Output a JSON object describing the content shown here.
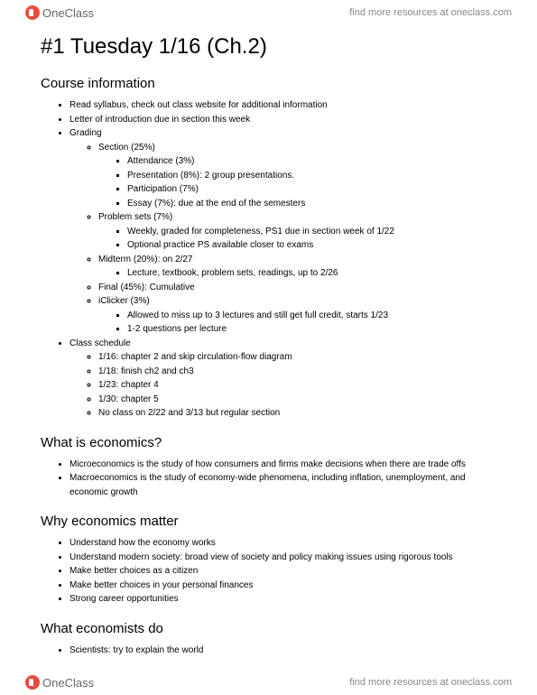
{
  "brand": {
    "name": "OneClass",
    "resources_text": "find more resources at oneclass.com"
  },
  "page_title": "#1 Tuesday 1/16 (Ch.2)",
  "sections": {
    "course_info": {
      "heading": "Course information",
      "bullets": {
        "b1": "Read syllabus, check out class website for additional information",
        "b2": "Letter of introduction due in section this week",
        "b3": "Grading",
        "b3_section": "Section (25%)",
        "b3_attendance": "Attendance (3%)",
        "b3_presentation": "Presentation (8%): 2 group presentations.",
        "b3_participation": "Participation (7%)",
        "b3_essay": "Essay (7%): due at the end of the semesters",
        "b3_ps": "Problem sets (7%)",
        "b3_ps_weekly": "Weekly, graded for completeness, PS1 due in section week of 1/22",
        "b3_ps_optional": "Optional practice PS available closer to exams",
        "b3_midterm": "Midterm (20%): on 2/27",
        "b3_midterm_detail": "Lecture, textbook, problem sets, readings, up to 2/26",
        "b3_final": "Final (45%): Cumulative",
        "b3_iclicker": "iClicker (3%)",
        "b3_iclicker_miss": "Allowed to miss up to 3 lectures and still get full credit, starts 1/23",
        "b3_iclicker_q": "1-2 questions per lecture",
        "b4": "Class schedule",
        "b4_1": "1/16: chapter 2 and skip circulation-flow diagram",
        "b4_2": "1/18: finish ch2 and ch3",
        "b4_3": "1/23: chapter 4",
        "b4_4": "1/30: chapter 5",
        "b4_5": "No class on 2/22 and 3/13 but regular section"
      }
    },
    "what_is_econ": {
      "heading": "What is economics?",
      "b1": "Microeconomics is the study of how consumers and firms make decisions when there are trade offs",
      "b2": "Macroeconomics is the study of economy-wide phenomena, including inflation, unemployment, and economic growth"
    },
    "why_econ": {
      "heading": "Why economics matter",
      "b1": "Understand how the economy works",
      "b2": "Understand modern society: broad view of society and policy making issues using rigorous tools",
      "b3": "Make better choices as a citizen",
      "b4": "Make better choices in your personal finances",
      "b5": "Strong career opportunities"
    },
    "what_economists_do": {
      "heading": "What economists do",
      "b1": "Scientists: try to explain the world"
    }
  }
}
